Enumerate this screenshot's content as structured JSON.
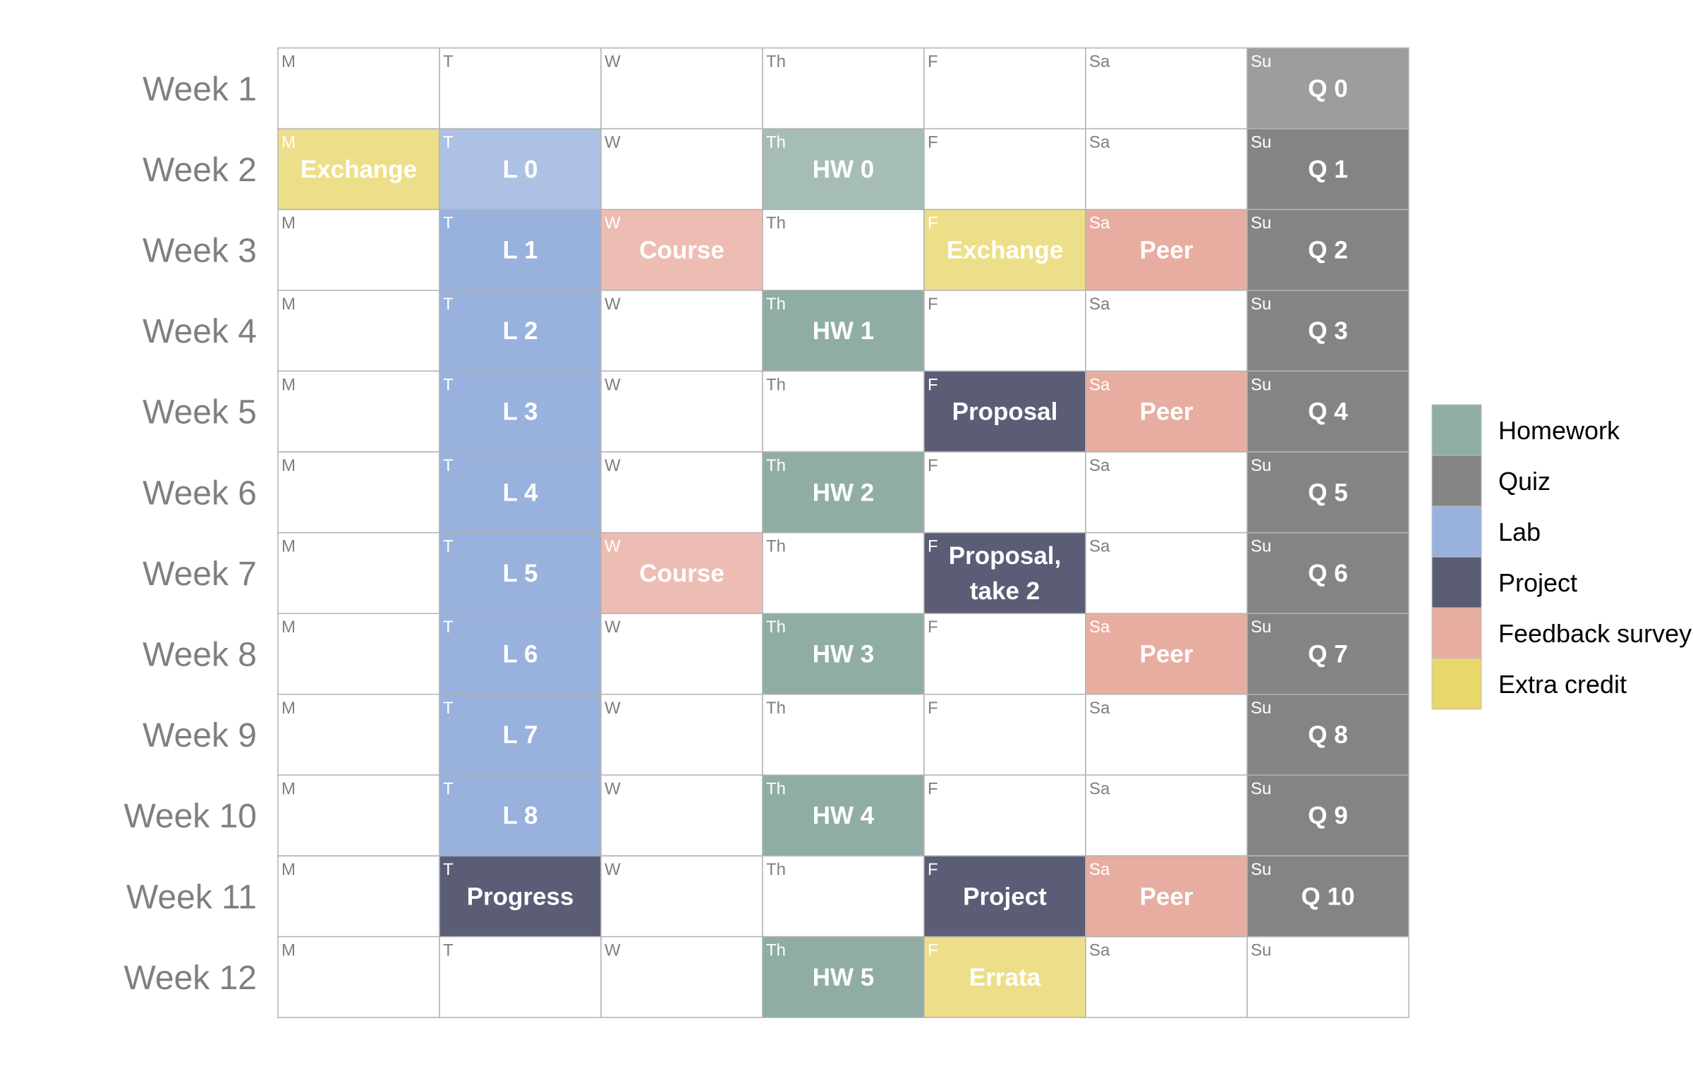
{
  "chart_data": {
    "type": "table",
    "days": [
      "M",
      "T",
      "W",
      "Th",
      "F",
      "Sa",
      "Su"
    ],
    "weeks": [
      "Week 1",
      "Week 2",
      "Week 3",
      "Week 4",
      "Week 5",
      "Week 6",
      "Week 7",
      "Week 8",
      "Week 9",
      "Week 10",
      "Week 11",
      "Week 12"
    ],
    "categories": [
      {
        "name": "Homework",
        "color": "#8fada4"
      },
      {
        "name": "Quiz",
        "color": "#848484"
      },
      {
        "name": "Lab",
        "color": "#99b1dd"
      },
      {
        "name": "Project",
        "color": "#5b5c75"
      },
      {
        "name": "Feedback survey",
        "color": "#e8ada1"
      },
      {
        "name": "Extra credit",
        "color": "#e8d76b"
      }
    ],
    "events": [
      {
        "week": 1,
        "day": "Su",
        "text": "Q 0",
        "category": "Quiz",
        "faded": true
      },
      {
        "week": 2,
        "day": "M",
        "text": "Exchange",
        "category": "Extra credit",
        "faded": true
      },
      {
        "week": 2,
        "day": "T",
        "text": "L 0",
        "category": "Lab",
        "faded": true
      },
      {
        "week": 2,
        "day": "Th",
        "text": "HW 0",
        "category": "Homework",
        "faded": true
      },
      {
        "week": 2,
        "day": "Su",
        "text": "Q 1",
        "category": "Quiz",
        "faded": false
      },
      {
        "week": 3,
        "day": "T",
        "text": "L 1",
        "category": "Lab",
        "faded": false
      },
      {
        "week": 3,
        "day": "W",
        "text": "Course",
        "category": "Feedback survey",
        "faded": true
      },
      {
        "week": 3,
        "day": "F",
        "text": "Exchange",
        "category": "Extra credit",
        "faded": true
      },
      {
        "week": 3,
        "day": "Sa",
        "text": "Peer",
        "category": "Feedback survey",
        "faded": false
      },
      {
        "week": 3,
        "day": "Su",
        "text": "Q 2",
        "category": "Quiz",
        "faded": false
      },
      {
        "week": 4,
        "day": "T",
        "text": "L 2",
        "category": "Lab",
        "faded": false
      },
      {
        "week": 4,
        "day": "Th",
        "text": "HW 1",
        "category": "Homework",
        "faded": false
      },
      {
        "week": 4,
        "day": "Su",
        "text": "Q 3",
        "category": "Quiz",
        "faded": false
      },
      {
        "week": 5,
        "day": "T",
        "text": "L 3",
        "category": "Lab",
        "faded": false
      },
      {
        "week": 5,
        "day": "F",
        "text": "Proposal",
        "category": "Project",
        "faded": false
      },
      {
        "week": 5,
        "day": "Sa",
        "text": "Peer",
        "category": "Feedback survey",
        "faded": false
      },
      {
        "week": 5,
        "day": "Su",
        "text": "Q 4",
        "category": "Quiz",
        "faded": false
      },
      {
        "week": 6,
        "day": "T",
        "text": "L 4",
        "category": "Lab",
        "faded": false
      },
      {
        "week": 6,
        "day": "Th",
        "text": "HW 2",
        "category": "Homework",
        "faded": false
      },
      {
        "week": 6,
        "day": "Su",
        "text": "Q 5",
        "category": "Quiz",
        "faded": false
      },
      {
        "week": 7,
        "day": "T",
        "text": "L 5",
        "category": "Lab",
        "faded": false
      },
      {
        "week": 7,
        "day": "W",
        "text": "Course",
        "category": "Feedback survey",
        "faded": true
      },
      {
        "week": 7,
        "day": "F",
        "text": "Proposal,\ntake 2",
        "category": "Project",
        "faded": false
      },
      {
        "week": 7,
        "day": "Su",
        "text": "Q 6",
        "category": "Quiz",
        "faded": false
      },
      {
        "week": 8,
        "day": "T",
        "text": "L 6",
        "category": "Lab",
        "faded": false
      },
      {
        "week": 8,
        "day": "Th",
        "text": "HW 3",
        "category": "Homework",
        "faded": false
      },
      {
        "week": 8,
        "day": "Sa",
        "text": "Peer",
        "category": "Feedback survey",
        "faded": false
      },
      {
        "week": 8,
        "day": "Su",
        "text": "Q 7",
        "category": "Quiz",
        "faded": false
      },
      {
        "week": 9,
        "day": "T",
        "text": "L 7",
        "category": "Lab",
        "faded": false
      },
      {
        "week": 9,
        "day": "Su",
        "text": "Q 8",
        "category": "Quiz",
        "faded": false
      },
      {
        "week": 10,
        "day": "T",
        "text": "L 8",
        "category": "Lab",
        "faded": false
      },
      {
        "week": 10,
        "day": "Th",
        "text": "HW 4",
        "category": "Homework",
        "faded": false
      },
      {
        "week": 10,
        "day": "Su",
        "text": "Q 9",
        "category": "Quiz",
        "faded": false
      },
      {
        "week": 11,
        "day": "T",
        "text": "Progress",
        "category": "Project",
        "faded": false
      },
      {
        "week": 11,
        "day": "F",
        "text": "Project",
        "category": "Project",
        "faded": false
      },
      {
        "week": 11,
        "day": "Sa",
        "text": "Peer",
        "category": "Feedback survey",
        "faded": false
      },
      {
        "week": 11,
        "day": "Su",
        "text": "Q 10",
        "category": "Quiz",
        "faded": false
      },
      {
        "week": 12,
        "day": "Th",
        "text": "HW 5",
        "category": "Homework",
        "faded": false
      },
      {
        "week": 12,
        "day": "F",
        "text": "Errata",
        "category": "Extra credit",
        "faded": true
      }
    ]
  }
}
